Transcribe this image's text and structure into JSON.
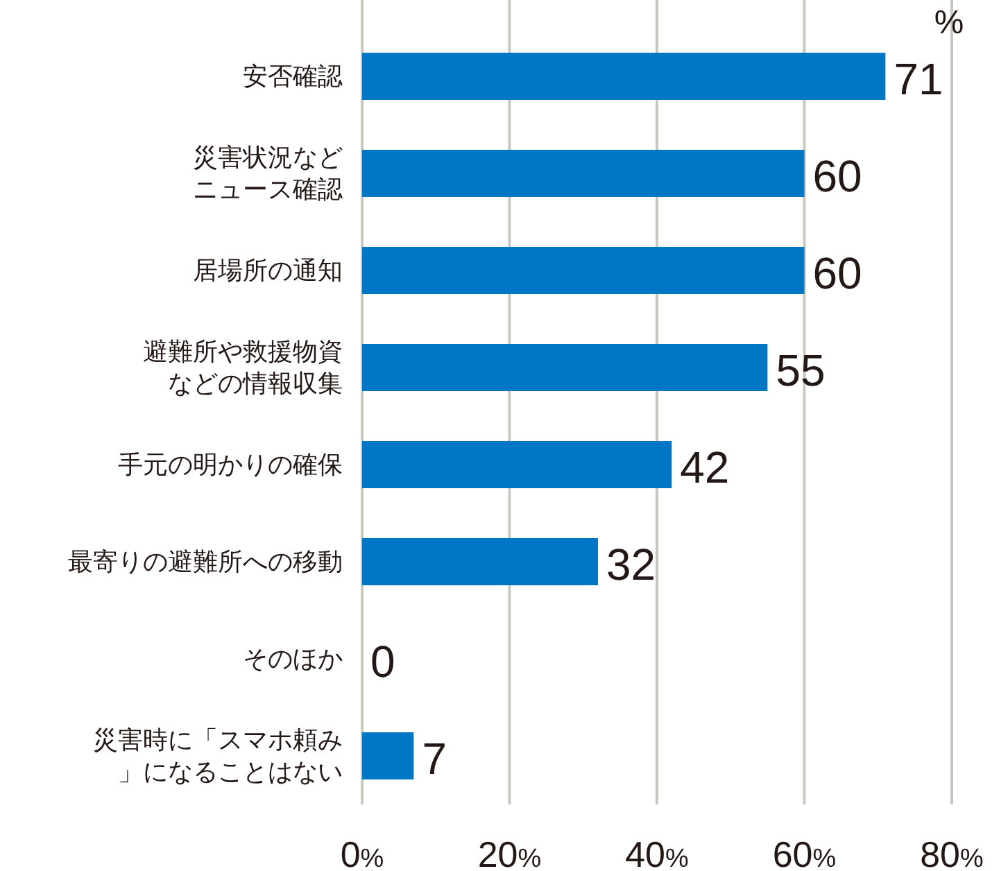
{
  "chart_data": {
    "type": "bar",
    "orientation": "horizontal",
    "categories": [
      "安否確認",
      "災害状況などニュース確認",
      "居場所の通知",
      "避難所や救援物資などの情報収集",
      "手元の明かりの確保",
      "最寄りの避難所への移動",
      "そのほか",
      "災害時に「スマホ頼み」になることはない"
    ],
    "values": [
      71,
      60,
      60,
      55,
      42,
      32,
      0,
      7
    ],
    "color": "#0077c4",
    "xlim": [
      0,
      80
    ],
    "xticks": [
      {
        "value": 0,
        "label": "0%"
      },
      {
        "value": 20,
        "label": "20%"
      },
      {
        "value": 40,
        "label": "40%"
      },
      {
        "value": 60,
        "label": "60%"
      },
      {
        "value": 80,
        "label": "80%"
      }
    ],
    "grid": "x",
    "data_labels": true,
    "annotations": [
      "%"
    ]
  }
}
